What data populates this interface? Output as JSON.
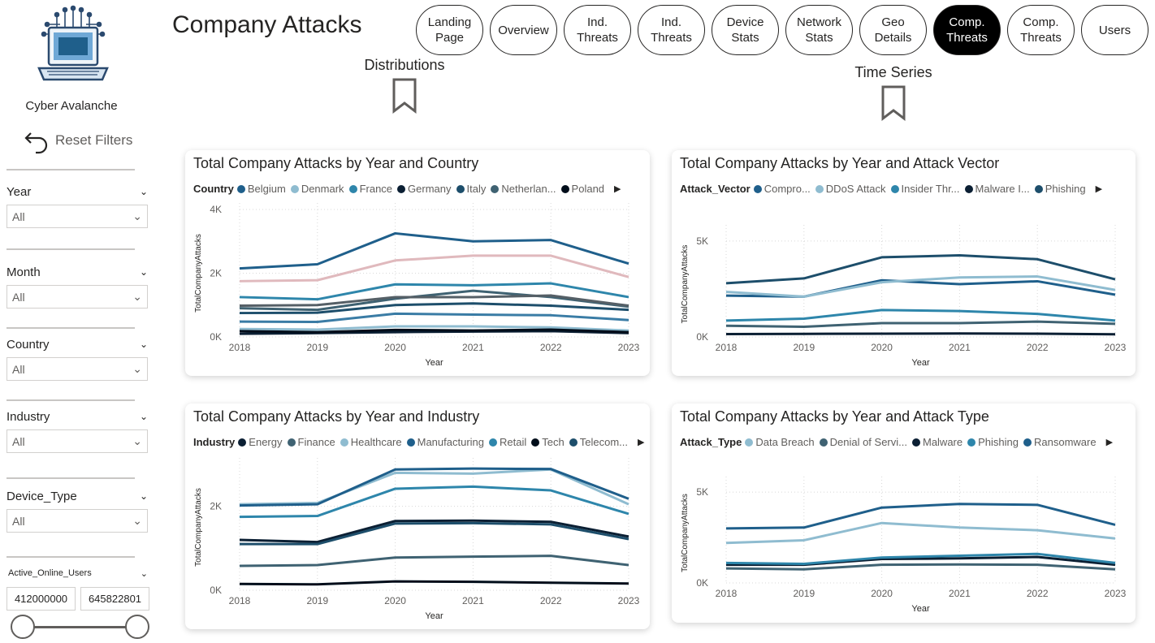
{
  "brand": {
    "name": "Cyber Avalanche",
    "reset_label": "Reset Filters"
  },
  "page_title": "Company Attacks",
  "nav": [
    {
      "label": "Landing\nPage",
      "active": false
    },
    {
      "label": "Overview",
      "active": false
    },
    {
      "label": "Ind.\nThreats",
      "active": false
    },
    {
      "label": "Ind.\nThreats",
      "active": false
    },
    {
      "label": "Device\nStats",
      "active": false
    },
    {
      "label": "Network\nStats",
      "active": false
    },
    {
      "label": "Geo\nDetails",
      "active": false
    },
    {
      "label": "Comp.\nThreats",
      "active": true
    },
    {
      "label": "Comp.\nThreats",
      "active": false
    },
    {
      "label": "Users",
      "active": false
    }
  ],
  "bookmarks": {
    "distributions": "Distributions",
    "time_series": "Time Series"
  },
  "slicers": [
    {
      "label": "Year",
      "value": "All"
    },
    {
      "label": "Month",
      "value": "All"
    },
    {
      "label": "Country",
      "value": "All"
    },
    {
      "label": "Industry",
      "value": "All"
    },
    {
      "label": "Device_Type",
      "value": "All"
    }
  ],
  "range_slicer": {
    "label": "Active_Online_Users",
    "min": "412000000",
    "max": "645822801"
  },
  "colors": {
    "accent": "#000000",
    "dark_navy": "#0b1f33",
    "blue": "#1f5f8b",
    "light_blue": "#8fbcd0",
    "pink": "#e0b9bd"
  },
  "chart_data": [
    {
      "type": "line",
      "title": "Total Company Attacks by Year and Country",
      "legend_title": "Country",
      "xlabel": "Year",
      "ylabel": "TotalCompanyAttacks",
      "x": [
        2018,
        2019,
        2020,
        2021,
        2022,
        2023
      ],
      "ylim": [
        0,
        4000
      ],
      "yticks": [
        "0K",
        "2K",
        "4K"
      ],
      "ytick_values": [
        0,
        2000,
        4000
      ],
      "series": [
        {
          "name": "Belgium",
          "color": "#1f5f8b",
          "values": [
            2150,
            2280,
            3250,
            3000,
            3040,
            2300
          ]
        },
        {
          "name": "Denmark",
          "color": "#8fbcd0",
          "values": [
            250,
            230,
            330,
            330,
            300,
            200
          ]
        },
        {
          "name": "France",
          "color": "#2e86ab",
          "values": [
            1250,
            1180,
            1650,
            1620,
            1680,
            1250
          ]
        },
        {
          "name": "Germany",
          "color": "#0b1f33",
          "values": [
            100,
            120,
            150,
            170,
            180,
            120
          ]
        },
        {
          "name": "Italy",
          "color": "#1d4e6b",
          "values": [
            750,
            760,
            1000,
            1050,
            980,
            850
          ]
        },
        {
          "name": "Netherlan...",
          "color": "#3f6272",
          "values": [
            900,
            850,
            1200,
            1450,
            1250,
            950
          ]
        },
        {
          "name": "Poland",
          "color": "#000d1a",
          "values": [
            180,
            150,
            220,
            200,
            230,
            150
          ]
        },
        {
          "color": "#e0b9bd",
          "values": [
            1750,
            1780,
            2400,
            2550,
            2550,
            1880
          ]
        },
        {
          "color": "#3a7ca5",
          "values": [
            480,
            470,
            730,
            700,
            680,
            530
          ]
        },
        {
          "color": "#555f66",
          "values": [
            980,
            1000,
            1250,
            1250,
            1300,
            980
          ]
        }
      ]
    },
    {
      "type": "line",
      "title": "Total Company Attacks by Year and Attack Vector",
      "legend_title": "Attack_Vector",
      "xlabel": "Year",
      "ylabel": "TotalCompanyAttacks",
      "x": [
        2018,
        2019,
        2020,
        2021,
        2022,
        2023
      ],
      "ylim": [
        0,
        5500
      ],
      "yticks": [
        "0K",
        "5K"
      ],
      "ytick_values": [
        0,
        5000
      ],
      "series": [
        {
          "name": "Compro...",
          "color": "#1f5f8b",
          "values": [
            2150,
            2100,
            2950,
            2750,
            2900,
            2200
          ]
        },
        {
          "name": "DDoS Attack",
          "color": "#8fbcd0",
          "values": [
            2350,
            2100,
            2850,
            3100,
            3150,
            2450
          ]
        },
        {
          "name": "Insider Thr...",
          "color": "#2e86ab",
          "values": [
            850,
            950,
            1400,
            1350,
            1200,
            850
          ]
        },
        {
          "name": "Malware I...",
          "color": "#0b1f33",
          "values": [
            150,
            160,
            170,
            180,
            170,
            140
          ]
        },
        {
          "name": "Phishing",
          "color": "#1d4e6b",
          "values": [
            2800,
            3050,
            4150,
            4250,
            4050,
            3000
          ]
        },
        {
          "color": "#3f6272",
          "values": [
            580,
            530,
            720,
            720,
            800,
            680
          ]
        }
      ]
    },
    {
      "type": "line",
      "title": "Total Company Attacks by Year and Industry",
      "legend_title": "Industry",
      "xlabel": "Year",
      "ylabel": "TotalCompanyAttacks",
      "x": [
        2018,
        2019,
        2020,
        2021,
        2022,
        2023
      ],
      "ylim": [
        0,
        3000
      ],
      "yticks": [
        "0K",
        "2K"
      ],
      "ytick_values": [
        0,
        2000
      ],
      "series": [
        {
          "name": "Energy",
          "color": "#0b1f33",
          "values": [
            1200,
            1150,
            1650,
            1660,
            1630,
            1280
          ]
        },
        {
          "name": "Finance",
          "color": "#3f6272",
          "values": [
            580,
            600,
            780,
            800,
            820,
            600
          ]
        },
        {
          "name": "Healthcare",
          "color": "#8fbcd0",
          "values": [
            2050,
            2080,
            2800,
            2780,
            2880,
            2050
          ]
        },
        {
          "name": "Manufacturing",
          "color": "#1f5f8b",
          "values": [
            2020,
            2050,
            2880,
            2900,
            2890,
            2180
          ]
        },
        {
          "name": "Retail",
          "color": "#2e86ab",
          "values": [
            1750,
            1770,
            2420,
            2470,
            2380,
            1820
          ]
        },
        {
          "name": "Tech",
          "color": "#000d1a",
          "values": [
            150,
            140,
            210,
            200,
            180,
            160
          ]
        },
        {
          "name": "Telecom...",
          "color": "#1d4e6b",
          "values": [
            1100,
            1100,
            1590,
            1600,
            1570,
            1220
          ]
        }
      ]
    },
    {
      "type": "line",
      "title": "Total Company Attacks by Year and Attack Type",
      "legend_title": "Attack_Type",
      "xlabel": "Year",
      "ylabel": "TotalCompanyAttacks",
      "x": [
        2018,
        2019,
        2020,
        2021,
        2022,
        2023
      ],
      "ylim": [
        0,
        5500
      ],
      "yticks": [
        "0K",
        "5K"
      ],
      "ytick_values": [
        0,
        5000
      ],
      "series": [
        {
          "name": "Data Breach",
          "color": "#8fbcd0",
          "values": [
            2200,
            2350,
            3300,
            3050,
            2900,
            2450
          ]
        },
        {
          "name": "Denial of Servi...",
          "color": "#3f6272",
          "values": [
            800,
            750,
            1000,
            1020,
            1000,
            750
          ]
        },
        {
          "name": "Malware",
          "color": "#0b1f33",
          "values": [
            1000,
            1000,
            1320,
            1350,
            1430,
            1000
          ]
        },
        {
          "name": "Phishing",
          "color": "#2e86ab",
          "values": [
            1100,
            1050,
            1400,
            1500,
            1600,
            1100
          ]
        },
        {
          "name": "Ransomware",
          "color": "#1f5f8b",
          "values": [
            3000,
            3050,
            4150,
            4350,
            4300,
            3200
          ]
        }
      ]
    }
  ]
}
